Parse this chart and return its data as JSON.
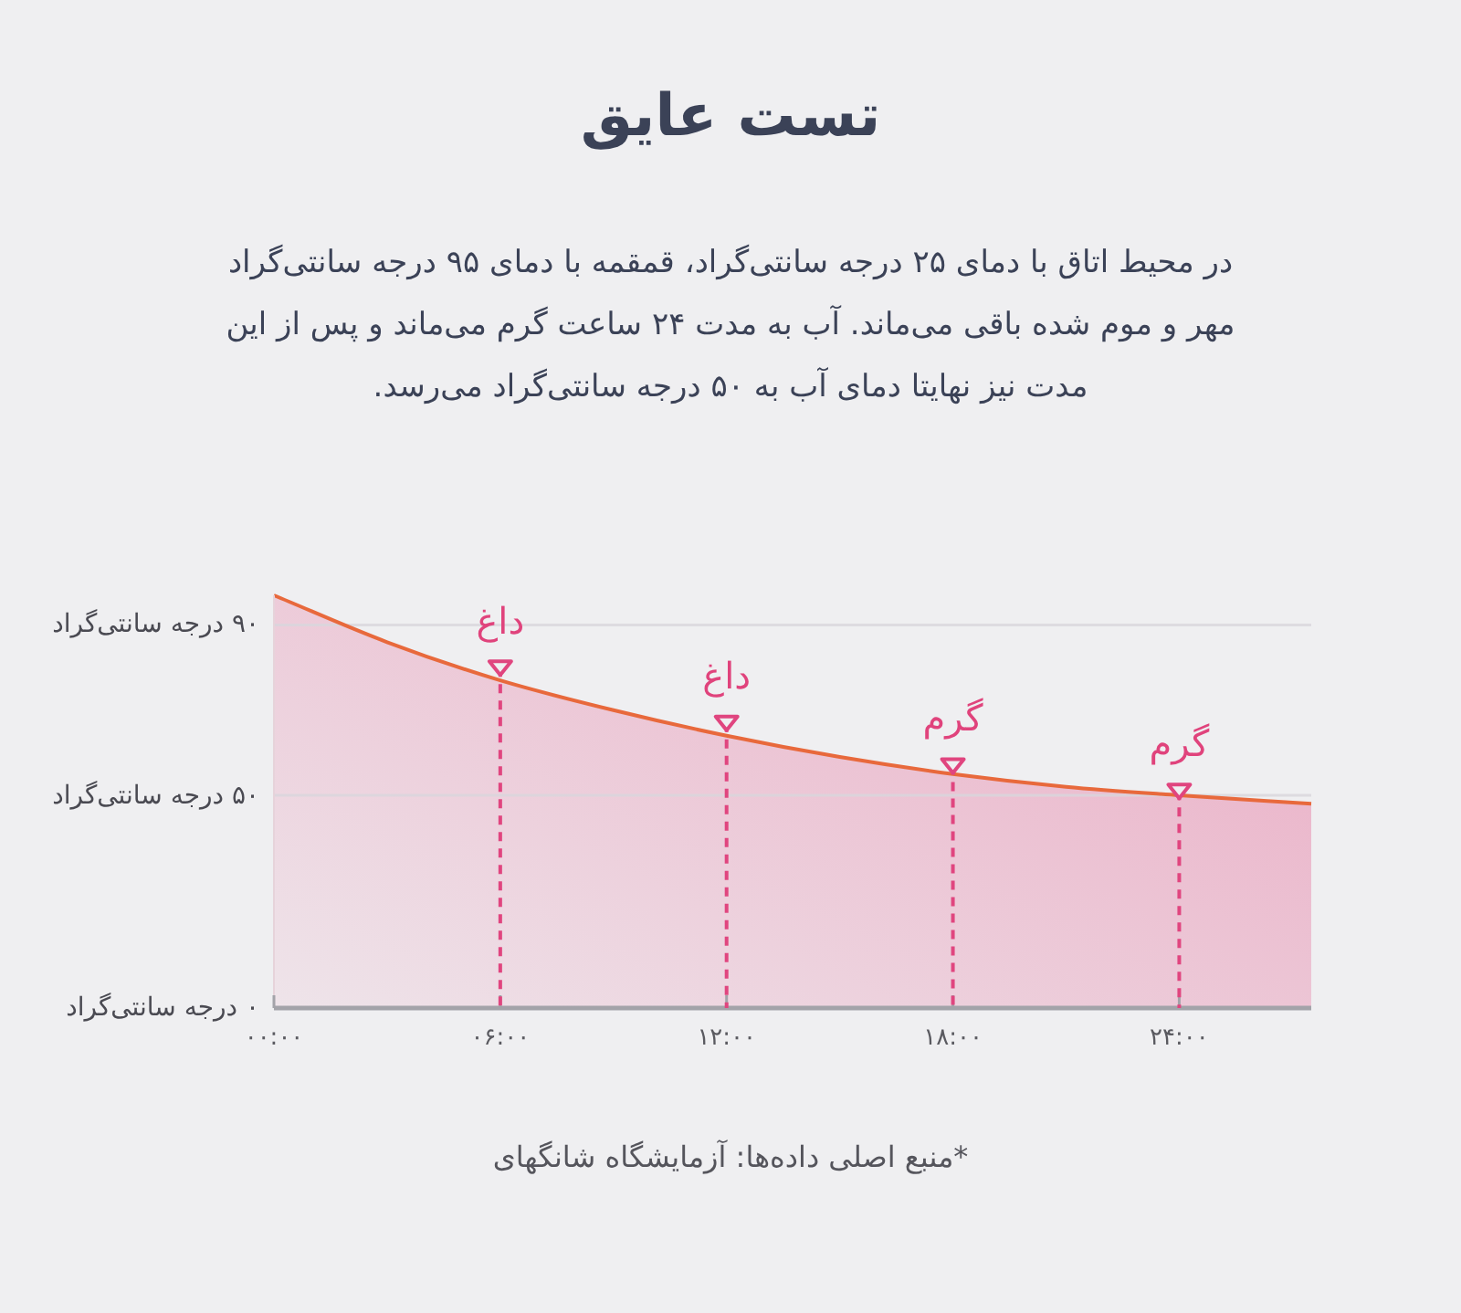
{
  "chart_data": {
    "type": "area",
    "title": "تست عایق",
    "subtitle": "در محیط اتاق با دمای ۲۵ درجه سانتی‌گراد، قمقمه با دمای ۹۵ درجه سانتی‌گراد مهر و موم شده باقی می‌ماند. آب به مدت ۲۴ ساعت گرم می‌ماند و پس از این مدت نیز نهایتا دمای آب به ۵۰ درجه سانتی‌گراد می‌رسد.",
    "series": [
      {
        "color": "#eaa6c0",
        "x": [
          0,
          3,
          6,
          9,
          12,
          15,
          18,
          21,
          24,
          27.5
        ],
        "values": [
          97,
          86,
          77,
          70,
          64,
          59,
          55,
          52,
          50,
          48
        ]
      },
      {
        "type": "lollipop",
        "color": "#e0457f",
        "marker": "triangle",
        "line_style": "dashed",
        "x": [
          6,
          12,
          18,
          24
        ],
        "values": [
          80,
          67,
          57,
          51
        ]
      }
    ],
    "xlim": [
      0,
      27.5
    ],
    "xticks": [
      {
        "value": 0,
        "label": "۰۰:۰۰"
      },
      {
        "value": 6,
        "label": "۰۶:۰۰"
      },
      {
        "value": 12,
        "label": "۱۲:۰۰"
      },
      {
        "value": 18,
        "label": "۱۸:۰۰"
      },
      {
        "value": 24,
        "label": "۲۴:۰۰"
      }
    ],
    "ylim": [
      0,
      97
    ],
    "yticks": [
      {
        "value": 0,
        "label": "۰ درجه سانتی‌گراد"
      },
      {
        "value": 50,
        "label": "۵۰ درجه سانتی‌گراد"
      },
      {
        "value": 90,
        "label": "۹۰ درجه سانتی‌گراد"
      }
    ],
    "grid": "y",
    "annotations": [
      {
        "text": "داغ",
        "x": 6,
        "y": 80
      },
      {
        "text": "داغ",
        "x": 12,
        "y": 67
      },
      {
        "text": "گرم",
        "x": 18,
        "y": 57
      },
      {
        "text": "گرم",
        "x": 24,
        "y": 51
      },
      "*منبع اصلی داده‌ها: آزمایشگاه شانگهای"
    ]
  }
}
